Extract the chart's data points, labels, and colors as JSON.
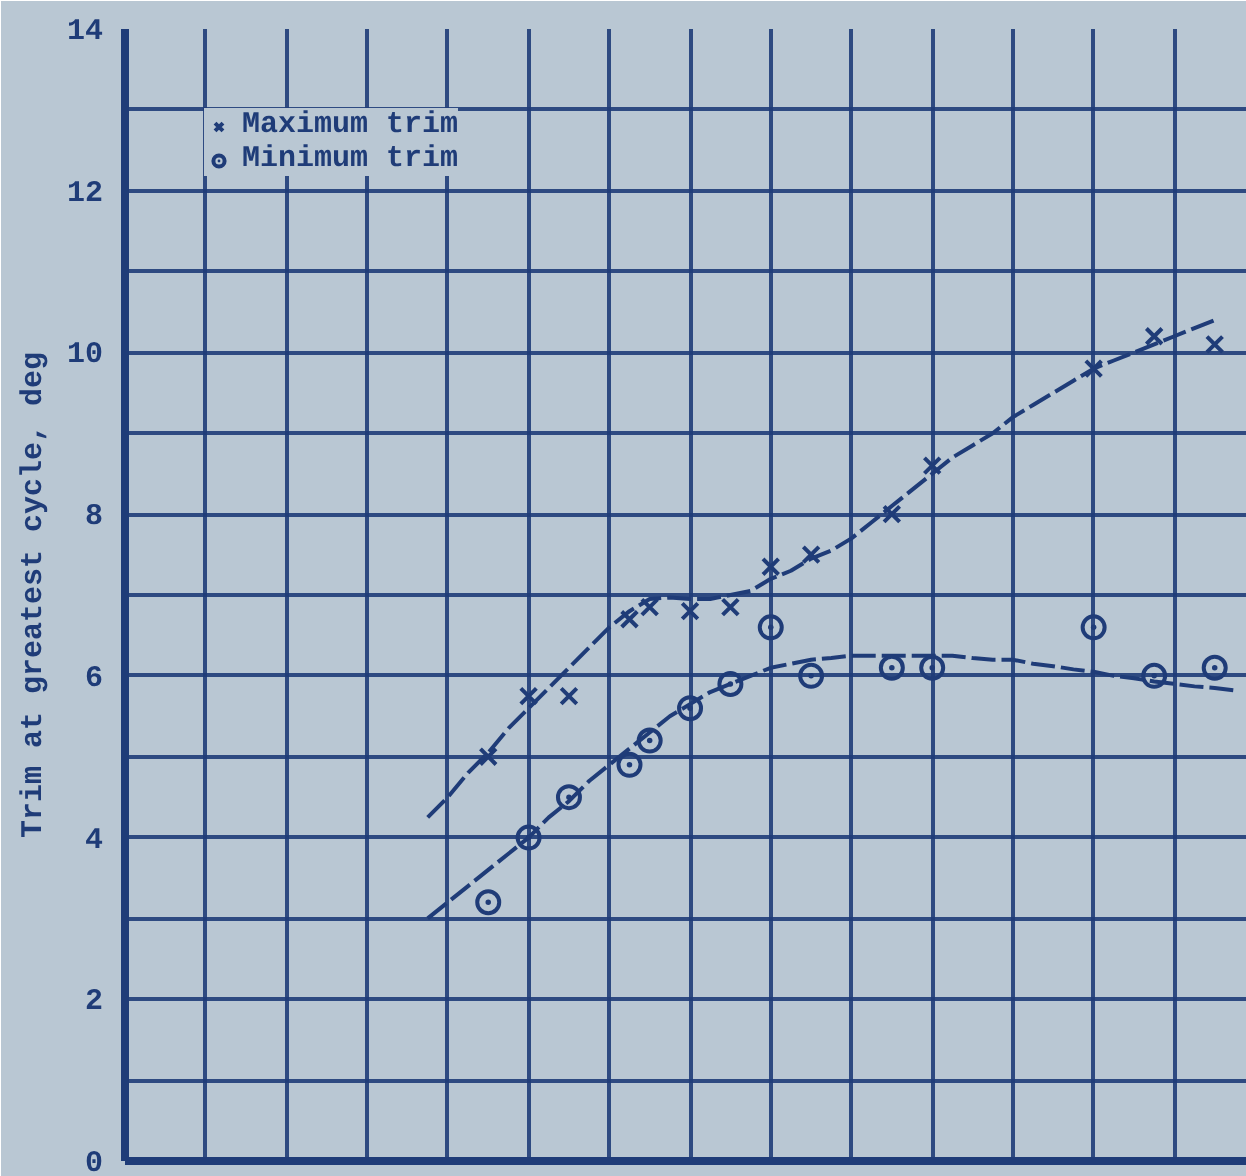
{
  "chart_data": {
    "type": "scatter",
    "ylabel": "Trim at greatest cycle, deg",
    "categories": [
      null,
      null,
      null,
      null,
      null,
      null,
      null,
      null,
      null,
      null,
      null,
      null,
      null,
      null,
      null,
      null,
      null,
      null,
      null,
      null,
      null,
      null,
      null,
      null,
      null,
      null,
      null,
      null,
      null,
      null,
      null,
      null,
      null,
      null,
      null,
      null,
      null,
      null,
      null,
      null,
      null,
      null,
      null,
      null,
      null,
      null,
      null,
      null,
      null,
      null,
      null,
      null,
      null,
      null,
      null,
      null
    ],
    "ylim": [
      0,
      14
    ],
    "yticks": [
      0,
      2,
      4,
      6,
      8,
      10,
      12,
      14
    ],
    "grid": true,
    "legend": "top left",
    "series": [
      {
        "name": "Maximum trim",
        "color": "#1f3c78",
        "marker": "cross",
        "values": [
          null,
          null,
          null,
          null,
          null,
          null,
          null,
          null,
          null,
          null,
          null,
          null,
          null,
          null,
          null,
          null,
          null,
          null,
          5.0,
          null,
          5.75,
          null,
          5.75,
          null,
          null,
          6.7,
          6.85,
          null,
          6.8,
          null,
          6.85,
          null,
          7.35,
          null,
          7.5,
          null,
          null,
          null,
          8.0,
          null,
          8.6,
          null,
          null,
          null,
          null,
          null,
          null,
          null,
          9.8,
          null,
          null,
          10.2,
          null,
          null,
          10.1,
          null
        ]
      },
      {
        "name": "Minimum trim",
        "color": "#1f3c78",
        "marker": "circle",
        "values": [
          null,
          null,
          null,
          null,
          null,
          null,
          null,
          null,
          null,
          null,
          null,
          null,
          null,
          null,
          null,
          null,
          null,
          null,
          3.2,
          null,
          4.0,
          null,
          4.5,
          null,
          null,
          4.9,
          5.2,
          null,
          5.6,
          null,
          5.9,
          null,
          6.6,
          null,
          6.0,
          null,
          null,
          null,
          6.1,
          null,
          6.1,
          null,
          null,
          null,
          null,
          null,
          null,
          null,
          6.6,
          null,
          null,
          6.0,
          null,
          null,
          6.1,
          null
        ]
      },
      {
        "type": "line",
        "color": "#1f3c78",
        "line_style": "dashed",
        "values": [
          null,
          null,
          null,
          null,
          null,
          null,
          null,
          null,
          null,
          null,
          null,
          null,
          null,
          null,
          null,
          4.25,
          4.5,
          4.8,
          5.05,
          5.35,
          5.6,
          5.85,
          6.1,
          6.35,
          6.6,
          6.8,
          6.95,
          6.97,
          6.95,
          6.95,
          7.0,
          7.05,
          7.2,
          7.3,
          7.45,
          7.55,
          7.7,
          7.9,
          8.1,
          8.3,
          8.5,
          8.7,
          8.85,
          9.0,
          9.2,
          9.35,
          9.5,
          9.65,
          9.8,
          9.9,
          10.0,
          10.1,
          10.2,
          10.3,
          10.4,
          null
        ]
      },
      {
        "type": "line",
        "color": "#1f3c78",
        "line_style": "dashed",
        "values": [
          null,
          null,
          null,
          null,
          null,
          null,
          null,
          null,
          null,
          null,
          null,
          null,
          null,
          null,
          null,
          3.0,
          3.2,
          3.4,
          3.6,
          3.8,
          4.0,
          4.25,
          4.45,
          4.7,
          4.9,
          5.1,
          5.3,
          5.5,
          5.65,
          5.8,
          5.9,
          6.0,
          6.1,
          6.15,
          6.2,
          6.22,
          6.25,
          6.25,
          6.25,
          6.25,
          6.25,
          6.25,
          6.22,
          6.2,
          6.2,
          6.15,
          6.12,
          6.08,
          6.05,
          6.0,
          5.97,
          5.93,
          5.9,
          5.87,
          5.85,
          5.82
        ]
      }
    ]
  }
}
